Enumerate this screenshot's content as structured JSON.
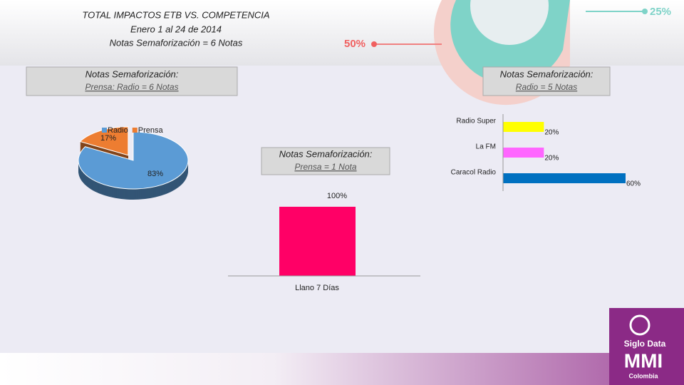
{
  "header": {
    "title": "TOTAL IMPACTOS ETB VS. COMPETENCIA",
    "dates": "Enero 1 al 24 de 2014",
    "notes": "Notas Semaforización = 6 Notas"
  },
  "decor": {
    "right": "25%",
    "left": "50%"
  },
  "boxes": [
    {
      "title": "Notas Semaforización:",
      "subtitle": "Prensa: Radio = 6 Notas"
    },
    {
      "title": "Notas Semaforización:",
      "subtitle": "Radio = 5 Notas"
    },
    {
      "title": "Notas Semaforización:",
      "subtitle": "Prensa = 1 Nota"
    }
  ],
  "chart_data": [
    {
      "type": "pie",
      "categories": [
        "Radio",
        "Prensa"
      ],
      "values": [
        83,
        17
      ],
      "value_labels": [
        "83%",
        "17%"
      ],
      "colors": [
        "#5b9bd5",
        "#ed7d31"
      ],
      "legend": "top"
    },
    {
      "type": "bar",
      "categories": [
        "Llano 7 Días"
      ],
      "values": [
        100
      ],
      "value_labels": [
        "100%"
      ],
      "color": "#ff0066",
      "ylim": [
        0,
        100
      ]
    },
    {
      "type": "hbar",
      "categories": [
        "Radio Super",
        "La FM",
        "Caracol Radio"
      ],
      "values": [
        20,
        20,
        60
      ],
      "value_labels": [
        "20%",
        "20%",
        "60%"
      ],
      "colors": [
        "#ffff00",
        "#ff66ff",
        "#0070c0"
      ],
      "xlim": [
        0,
        60
      ]
    }
  ],
  "logo": {
    "brand": "Siglo Data",
    "name": "MMI",
    "country": "Colombia"
  }
}
